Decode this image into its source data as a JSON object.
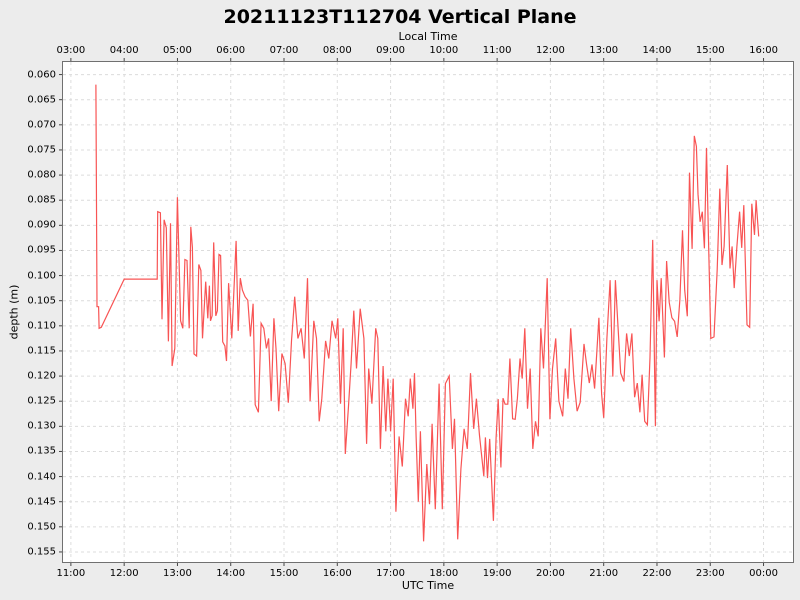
{
  "figure": {
    "title": "20211123T112704 Vertical Plane"
  },
  "colors": {
    "figure_bg": "#ececec",
    "plot_bg": "#ffffff",
    "grid": "#dcdcdc",
    "spine": "#707070",
    "tick": "#444444",
    "text": "#000000",
    "line": "#f85454"
  },
  "chart_data": {
    "type": "line",
    "title": "20211123T112704 Vertical Plane",
    "top_axis": {
      "label": "Local Time",
      "tick_labels": [
        "03:00",
        "04:00",
        "05:00",
        "06:00",
        "07:00",
        "08:00",
        "09:00",
        "10:00",
        "11:00",
        "12:00",
        "13:00",
        "14:00",
        "15:00",
        "16:00"
      ]
    },
    "bottom_axis": {
      "label": "UTC Time",
      "tick_hours": [
        11,
        12,
        13,
        14,
        15,
        16,
        17,
        18,
        19,
        20,
        21,
        22,
        23,
        24
      ],
      "tick_labels": [
        "11:00",
        "12:00",
        "13:00",
        "14:00",
        "15:00",
        "16:00",
        "17:00",
        "18:00",
        "19:00",
        "20:00",
        "21:00",
        "22:00",
        "23:00",
        "00:00"
      ]
    },
    "y_axis": {
      "label": "depth (m)",
      "tick_values": [
        0.06,
        0.065,
        0.07,
        0.075,
        0.08,
        0.085,
        0.09,
        0.095,
        0.1,
        0.105,
        0.11,
        0.115,
        0.12,
        0.125,
        0.13,
        0.135,
        0.14,
        0.145,
        0.15,
        0.155
      ],
      "tick_labels": [
        "0.060",
        "0.065",
        "0.070",
        "0.075",
        "0.080",
        "0.085",
        "0.090",
        "0.095",
        "0.100",
        "0.105",
        "0.110",
        "0.115",
        "0.120",
        "0.125",
        "0.130",
        "0.135",
        "0.140",
        "0.145",
        "0.150",
        "0.155"
      ]
    },
    "xlim": [
      10.852,
      24.553
    ],
    "ylim": [
      0.0575,
      0.157
    ],
    "y_inverted": true,
    "grid": true,
    "series": [
      {
        "name": "depth",
        "points": [
          [
            11.47,
            0.062
          ],
          [
            11.49,
            0.1062
          ],
          [
            11.52,
            0.1062
          ],
          [
            11.53,
            0.1105
          ],
          [
            11.57,
            0.1103
          ],
          [
            12.0,
            0.1007
          ],
          [
            12.62,
            0.1007
          ],
          [
            12.63,
            0.0873
          ],
          [
            12.68,
            0.0875
          ],
          [
            12.71,
            0.1087
          ],
          [
            12.75,
            0.0889
          ],
          [
            12.79,
            0.0905
          ],
          [
            12.83,
            0.1131
          ],
          [
            12.87,
            0.0896
          ],
          [
            12.9,
            0.118
          ],
          [
            12.95,
            0.1145
          ],
          [
            13.0,
            0.0844
          ],
          [
            13.06,
            0.109
          ],
          [
            13.1,
            0.1105
          ],
          [
            13.14,
            0.0968
          ],
          [
            13.18,
            0.097
          ],
          [
            13.22,
            0.1105
          ],
          [
            13.25,
            0.0903
          ],
          [
            13.28,
            0.0944
          ],
          [
            13.31,
            0.1156
          ],
          [
            13.36,
            0.116
          ],
          [
            13.4,
            0.0978
          ],
          [
            13.44,
            0.099
          ],
          [
            13.47,
            0.1125
          ],
          [
            13.53,
            0.1012
          ],
          [
            13.57,
            0.1085
          ],
          [
            13.6,
            0.102
          ],
          [
            13.62,
            0.109
          ],
          [
            13.65,
            0.108
          ],
          [
            13.68,
            0.0934
          ],
          [
            13.72,
            0.108
          ],
          [
            13.75,
            0.107
          ],
          [
            13.78,
            0.0958
          ],
          [
            13.81,
            0.096
          ],
          [
            13.85,
            0.1132
          ],
          [
            13.89,
            0.114
          ],
          [
            13.92,
            0.117
          ],
          [
            13.96,
            0.1015
          ],
          [
            14.02,
            0.1125
          ],
          [
            14.1,
            0.0931
          ],
          [
            14.14,
            0.111
          ],
          [
            14.18,
            0.1005
          ],
          [
            14.22,
            0.1029
          ],
          [
            14.27,
            0.1042
          ],
          [
            14.32,
            0.1049
          ],
          [
            14.37,
            0.1121
          ],
          [
            14.42,
            0.1056
          ],
          [
            14.46,
            0.1257
          ],
          [
            14.52,
            0.1272
          ],
          [
            14.57,
            0.1095
          ],
          [
            14.62,
            0.1105
          ],
          [
            14.67,
            0.1145
          ],
          [
            14.71,
            0.1125
          ],
          [
            14.76,
            0.125
          ],
          [
            14.81,
            0.1085
          ],
          [
            14.85,
            0.1145
          ],
          [
            14.9,
            0.127
          ],
          [
            14.96,
            0.1155
          ],
          [
            15.02,
            0.1175
          ],
          [
            15.08,
            0.1253
          ],
          [
            15.14,
            0.113
          ],
          [
            15.2,
            0.1042
          ],
          [
            15.26,
            0.1125
          ],
          [
            15.32,
            0.1105
          ],
          [
            15.38,
            0.1165
          ],
          [
            15.44,
            0.1005
          ],
          [
            15.49,
            0.125
          ],
          [
            15.56,
            0.109
          ],
          [
            15.61,
            0.1125
          ],
          [
            15.66,
            0.129
          ],
          [
            15.71,
            0.1245
          ],
          [
            15.78,
            0.113
          ],
          [
            15.84,
            0.1165
          ],
          [
            15.9,
            0.109
          ],
          [
            15.97,
            0.1125
          ],
          [
            16.01,
            0.1085
          ],
          [
            16.06,
            0.1255
          ],
          [
            16.11,
            0.1105
          ],
          [
            16.15,
            0.1355
          ],
          [
            16.21,
            0.126
          ],
          [
            16.26,
            0.1175
          ],
          [
            16.31,
            0.107
          ],
          [
            16.36,
            0.1185
          ],
          [
            16.43,
            0.1066
          ],
          [
            16.5,
            0.1125
          ],
          [
            16.55,
            0.1335
          ],
          [
            16.59,
            0.1185
          ],
          [
            16.65,
            0.1255
          ],
          [
            16.72,
            0.1105
          ],
          [
            16.76,
            0.1125
          ],
          [
            16.81,
            0.1345
          ],
          [
            16.86,
            0.118
          ],
          [
            16.91,
            0.131
          ],
          [
            16.95,
            0.1205
          ],
          [
            17.0,
            0.131
          ],
          [
            17.05,
            0.1205
          ],
          [
            17.1,
            0.147
          ],
          [
            17.16,
            0.132
          ],
          [
            17.22,
            0.138
          ],
          [
            17.28,
            0.1245
          ],
          [
            17.33,
            0.128
          ],
          [
            17.37,
            0.1205
          ],
          [
            17.42,
            0.1265
          ],
          [
            17.45,
            0.1194
          ],
          [
            17.48,
            0.132
          ],
          [
            17.52,
            0.145
          ],
          [
            17.56,
            0.131
          ],
          [
            17.62,
            0.1529
          ],
          [
            17.68,
            0.1375
          ],
          [
            17.73,
            0.1455
          ],
          [
            17.78,
            0.1295
          ],
          [
            17.84,
            0.1465
          ],
          [
            17.91,
            0.1215
          ],
          [
            17.97,
            0.1465
          ],
          [
            18.03,
            0.1215
          ],
          [
            18.1,
            0.12
          ],
          [
            18.16,
            0.1345
          ],
          [
            18.2,
            0.1285
          ],
          [
            18.26,
            0.1525
          ],
          [
            18.32,
            0.1385
          ],
          [
            18.38,
            0.1305
          ],
          [
            18.44,
            0.1345
          ],
          [
            18.5,
            0.1194
          ],
          [
            18.56,
            0.1305
          ],
          [
            18.61,
            0.1245
          ],
          [
            18.67,
            0.1318
          ],
          [
            18.75,
            0.1399
          ],
          [
            18.78,
            0.1322
          ],
          [
            18.82,
            0.1403
          ],
          [
            18.86,
            0.1325
          ],
          [
            18.93,
            0.1488
          ],
          [
            18.98,
            0.1322
          ],
          [
            19.02,
            0.1246
          ],
          [
            19.07,
            0.1382
          ],
          [
            19.11,
            0.1244
          ],
          [
            19.15,
            0.1256
          ],
          [
            19.2,
            0.1256
          ],
          [
            19.24,
            0.1165
          ],
          [
            19.29,
            0.1285
          ],
          [
            19.34,
            0.1286
          ],
          [
            19.38,
            0.1244
          ],
          [
            19.43,
            0.1165
          ],
          [
            19.47,
            0.1205
          ],
          [
            19.52,
            0.1105
          ],
          [
            19.57,
            0.1265
          ],
          [
            19.62,
            0.1185
          ],
          [
            19.67,
            0.1345
          ],
          [
            19.72,
            0.129
          ],
          [
            19.77,
            0.132
          ],
          [
            19.82,
            0.1105
          ],
          [
            19.87,
            0.1185
          ],
          [
            19.94,
            0.1005
          ],
          [
            19.99,
            0.1286
          ],
          [
            20.04,
            0.1185
          ],
          [
            20.1,
            0.1125
          ],
          [
            20.16,
            0.125
          ],
          [
            20.23,
            0.128
          ],
          [
            20.28,
            0.1185
          ],
          [
            20.33,
            0.1245
          ],
          [
            20.38,
            0.1105
          ],
          [
            20.44,
            0.1205
          ],
          [
            20.5,
            0.127
          ],
          [
            20.56,
            0.1252
          ],
          [
            20.63,
            0.1136
          ],
          [
            20.68,
            0.1177
          ],
          [
            20.73,
            0.1214
          ],
          [
            20.78,
            0.1177
          ],
          [
            20.83,
            0.1225
          ],
          [
            20.91,
            0.1084
          ],
          [
            20.96,
            0.1235
          ],
          [
            21.0,
            0.1283
          ],
          [
            21.06,
            0.1125
          ],
          [
            21.12,
            0.1009
          ],
          [
            21.17,
            0.1201
          ],
          [
            21.22,
            0.1009
          ],
          [
            21.27,
            0.1105
          ],
          [
            21.32,
            0.1194
          ],
          [
            21.38,
            0.1211
          ],
          [
            21.43,
            0.1115
          ],
          [
            21.48,
            0.116
          ],
          [
            21.53,
            0.1115
          ],
          [
            21.58,
            0.1242
          ],
          [
            21.63,
            0.1214
          ],
          [
            21.68,
            0.1272
          ],
          [
            21.72,
            0.1197
          ],
          [
            21.77,
            0.129
          ],
          [
            21.82,
            0.1297
          ],
          [
            21.87,
            0.1163
          ],
          [
            21.92,
            0.0929
          ],
          [
            21.97,
            0.13
          ],
          [
            22.0,
            0.1009
          ],
          [
            22.04,
            0.1091
          ],
          [
            22.08,
            0.1005
          ],
          [
            22.14,
            0.1163
          ],
          [
            22.18,
            0.0971
          ],
          [
            22.23,
            0.1053
          ],
          [
            22.28,
            0.1084
          ],
          [
            22.33,
            0.1091
          ],
          [
            22.38,
            0.1122
          ],
          [
            22.43,
            0.1047
          ],
          [
            22.48,
            0.091
          ],
          [
            22.52,
            0.1029
          ],
          [
            22.57,
            0.1081
          ],
          [
            22.61,
            0.0795
          ],
          [
            22.66,
            0.0947
          ],
          [
            22.7,
            0.0722
          ],
          [
            22.74,
            0.0743
          ],
          [
            22.77,
            0.0838
          ],
          [
            22.81,
            0.0893
          ],
          [
            22.85,
            0.0873
          ],
          [
            22.89,
            0.0946
          ],
          [
            22.93,
            0.0746
          ],
          [
            22.97,
            0.0946
          ],
          [
            23.01,
            0.1125
          ],
          [
            23.07,
            0.1122
          ],
          [
            23.13,
            0.0988
          ],
          [
            23.18,
            0.0827
          ],
          [
            23.22,
            0.0979
          ],
          [
            23.26,
            0.0942
          ],
          [
            23.32,
            0.078
          ],
          [
            23.37,
            0.0986
          ],
          [
            23.41,
            0.0942
          ],
          [
            23.45,
            0.1025
          ],
          [
            23.5,
            0.0942
          ],
          [
            23.55,
            0.0873
          ],
          [
            23.59,
            0.0945
          ],
          [
            23.63,
            0.086
          ],
          [
            23.69,
            0.1098
          ],
          [
            23.74,
            0.1103
          ],
          [
            23.78,
            0.0857
          ],
          [
            23.83,
            0.0919
          ],
          [
            23.86,
            0.085
          ],
          [
            23.91,
            0.0922
          ]
        ]
      }
    ]
  }
}
